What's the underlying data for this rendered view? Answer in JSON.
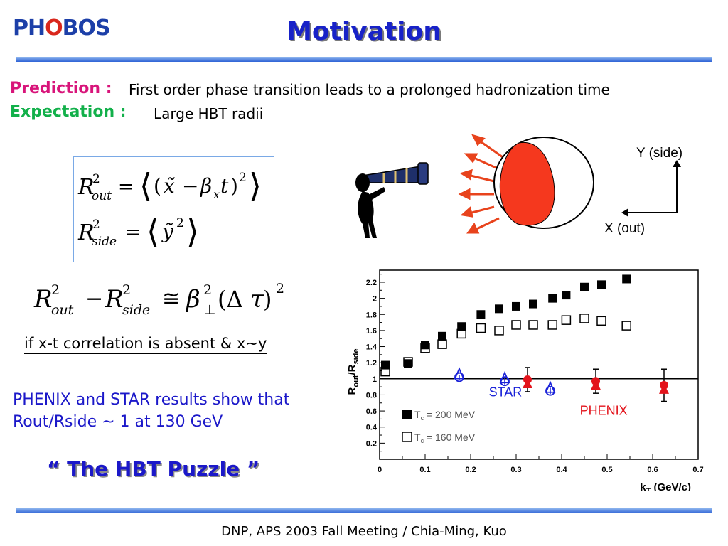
{
  "header": {
    "logo_p": "PH",
    "logo_h": "O",
    "logo_o": "BOS",
    "title": "Motivation"
  },
  "prediction": {
    "label": "Prediction :",
    "text": "First order phase transition leads to a prolonged hadronization time"
  },
  "expectation": {
    "label": "Expectation :",
    "text": "Large HBT radii"
  },
  "diagram": {
    "y_axis_label": "Y (side)",
    "x_axis_label": "X (out)",
    "colors": {
      "source_fill": "#f5381e",
      "arrow": "#e8431c"
    }
  },
  "condition_text": "if x-t correlation is absent & x∼y",
  "results_note": {
    "line1": "PHENIX and STAR results show that",
    "line2": "Rout/Rside ~ 1 at 130 GeV"
  },
  "puzzle_text": "“ The HBT Puzzle ”",
  "footer": "DNP, APS 2003 Fall Meeting / Chia-Ming, Kuo",
  "chart_data": {
    "type": "scatter",
    "xlabel": "k_T (GeV/c)",
    "ylabel": "R_out/R_side",
    "xlim": [
      0,
      0.7
    ],
    "ylim": [
      0,
      2.35
    ],
    "x_ticks": [
      0,
      0.1,
      0.2,
      0.3,
      0.4,
      0.5,
      0.6,
      0.7
    ],
    "y_ticks": [
      0.2,
      0.4,
      0.6,
      0.8,
      1,
      1.2,
      1.4,
      1.6,
      1.8,
      2,
      2.2
    ],
    "reference_line_y": 1,
    "grid": false,
    "series": [
      {
        "name": "T_c = 200 MeV",
        "legend_prefix": "T",
        "legend_sub": "c",
        "legend_suffix": " = 200 MeV",
        "marker": "filled-square",
        "color": "#000000",
        "x": [
          0.0125,
          0.0625,
          0.1,
          0.1375,
          0.18,
          0.2225,
          0.2625,
          0.3,
          0.3375,
          0.38,
          0.41,
          0.45,
          0.4875,
          0.5425
        ],
        "y": [
          1.17,
          1.19,
          1.42,
          1.53,
          1.65,
          1.8,
          1.87,
          1.9,
          1.93,
          2.0,
          2.04,
          2.14,
          2.17,
          2.24
        ]
      },
      {
        "name": "T_c = 160 MeV",
        "legend_prefix": "T",
        "legend_sub": "c",
        "legend_suffix": " = 160 MeV",
        "marker": "open-square",
        "color": "#000000",
        "x": [
          0.0125,
          0.0625,
          0.1,
          0.1375,
          0.18,
          0.2225,
          0.2625,
          0.3,
          0.3375,
          0.38,
          0.41,
          0.45,
          0.4875,
          0.5425
        ],
        "y": [
          1.09,
          1.21,
          1.38,
          1.43,
          1.56,
          1.63,
          1.6,
          1.67,
          1.67,
          1.67,
          1.73,
          1.75,
          1.72,
          1.66
        ]
      },
      {
        "name": "STAR",
        "marker": "open-circle-triangle",
        "color": "#1a22d8",
        "x": [
          0.175,
          0.275,
          0.375
        ],
        "y": [
          1.02,
          0.97,
          0.85
        ],
        "err": [
          0.03,
          0.04,
          0.04
        ]
      },
      {
        "name": "PHENIX",
        "marker": "filled-circle-triangle",
        "color": "#e3141c",
        "x": [
          0.325,
          0.475,
          0.625
        ],
        "y": [
          0.99,
          0.97,
          0.92
        ],
        "err": [
          0.15,
          0.15,
          0.2
        ]
      }
    ],
    "annotations": [
      "STAR",
      "PHENIX"
    ]
  }
}
